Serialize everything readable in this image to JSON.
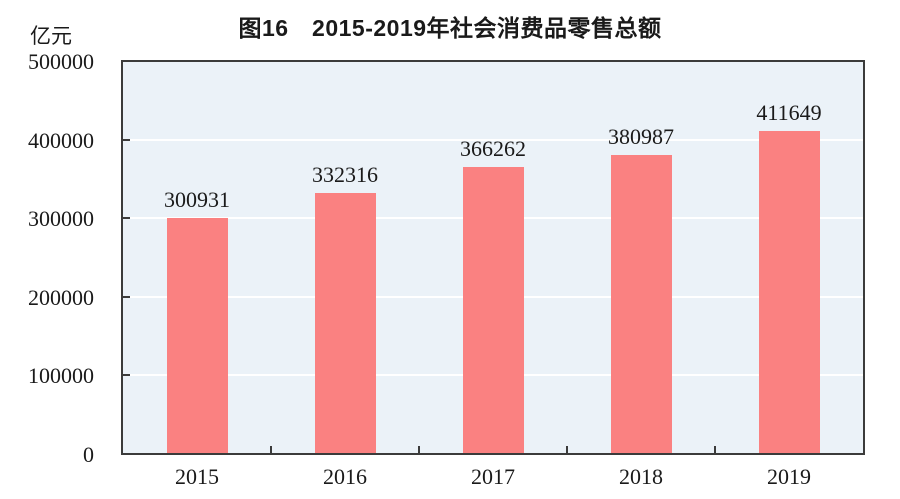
{
  "chart_data": {
    "type": "bar",
    "title": "图16　2015-2019年社会消费品零售总额",
    "unit_label": "亿元",
    "xlabel": "",
    "ylabel": "亿元",
    "categories": [
      "2015",
      "2016",
      "2017",
      "2018",
      "2019"
    ],
    "values": [
      300931,
      332316,
      366262,
      380987,
      411649
    ],
    "value_labels": [
      "300931",
      "332316",
      "366262",
      "380987",
      "411649"
    ],
    "ylim": [
      0,
      500000
    ],
    "yticks": [
      0,
      100000,
      200000,
      300000,
      400000,
      500000
    ],
    "ytick_labels": [
      "0",
      "100000",
      "200000",
      "300000",
      "400000",
      "500000"
    ],
    "grid": "horizontal",
    "legend": "none",
    "colors": {
      "bar_fill": "#FA8181",
      "plot_background": "#EBF2F8",
      "gridline": "#FFFFFF",
      "axis_frame": "#3B3B3B",
      "text": "#1A1A1A",
      "page_background": "#FFFFFF"
    }
  }
}
